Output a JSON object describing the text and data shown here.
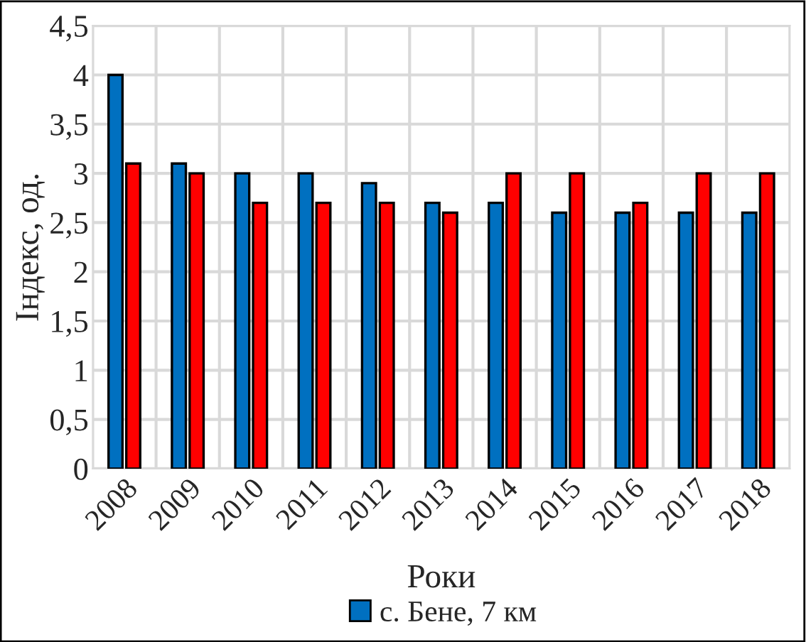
{
  "chart_data": {
    "type": "bar",
    "xlabel": "Роки",
    "ylabel": "Індекс, од.",
    "categories": [
      "2008",
      "2009",
      "2010",
      "2011",
      "2012",
      "2013",
      "2014",
      "2015",
      "2016",
      "2017",
      "2018"
    ],
    "series": [
      {
        "name": "с. Бене, 7 км",
        "color": "#0070c0",
        "values": [
          4,
          3.1,
          3,
          3,
          2.9,
          2.7,
          2.7,
          2.6,
          2.6,
          2.6,
          2.6
        ]
      },
      {
        "color": "#ff0000",
        "values": [
          3.1,
          3,
          2.7,
          2.7,
          2.7,
          2.6,
          3,
          3,
          2.7,
          3,
          3
        ]
      }
    ],
    "ylim": [
      0,
      4.5
    ],
    "yticks": [
      0,
      {
        "value": 0.5,
        "label": "0,5"
      },
      1,
      {
        "value": 1.5,
        "label": "1,5"
      },
      2,
      {
        "value": 2.5,
        "label": "2,5"
      },
      3,
      {
        "value": 3.5,
        "label": "3,5"
      },
      4,
      {
        "value": 4.5,
        "label": "4,5"
      }
    ],
    "grid": true,
    "legend": "bottom"
  }
}
